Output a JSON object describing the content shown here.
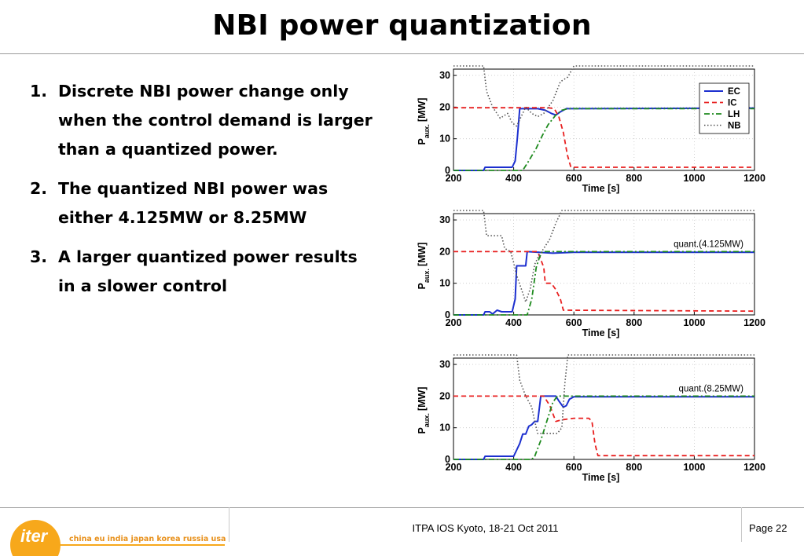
{
  "slide": {
    "title": "NBI power quantization",
    "bullets": [
      {
        "num": "1.",
        "text": "Discrete NBI power change only when the control demand is larger than a quantized power."
      },
      {
        "num": "2.",
        "text": "The quantized NBI power was either 4.125MW or 8.25MW"
      },
      {
        "num": "3.",
        "text": "A larger quantized power results in a slower control"
      }
    ]
  },
  "footer": {
    "logo_word": "iter",
    "logo_tagline": "china eu india japan korea russia usa",
    "event": "ITPA IOS Kyoto, 18-21 Oct 2011",
    "page": "Page 22"
  },
  "colors": {
    "EC": "#1c2fcf",
    "IC": "#e82020",
    "LH": "#1e8a1e",
    "NB": "#555555",
    "logo_orange": "#f7a81b",
    "logo_text": "#e8901a"
  },
  "chart_data": [
    {
      "type": "line",
      "annotation": "",
      "xlabel": "Time [s]",
      "ylabel_main": "P",
      "ylabel_sub": "aux.",
      "ylabel_unit": "[MW]",
      "xlim": [
        200,
        1200
      ],
      "ylim": [
        0,
        32
      ],
      "xticks": [
        200,
        400,
        600,
        800,
        1000,
        1200
      ],
      "yticks": [
        0,
        10,
        20,
        30
      ],
      "grid": true,
      "legend_position": "top-right",
      "series": [
        {
          "name": "EC",
          "style": "solid",
          "points": [
            [
              200,
              0
            ],
            [
              300,
              0
            ],
            [
              305,
              1
            ],
            [
              320,
              1
            ],
            [
              395,
              1
            ],
            [
              405,
              3
            ],
            [
              412,
              10
            ],
            [
              420,
              19.5
            ],
            [
              480,
              19.5
            ],
            [
              505,
              19
            ],
            [
              525,
              18
            ],
            [
              540,
              17.5
            ],
            [
              555,
              18.5
            ],
            [
              575,
              19.5
            ],
            [
              1200,
              19.7
            ]
          ]
        },
        {
          "name": "IC",
          "style": "dash",
          "points": [
            [
              200,
              19.8
            ],
            [
              515,
              19.8
            ],
            [
              535,
              19.5
            ],
            [
              550,
              17
            ],
            [
              565,
              12
            ],
            [
              578,
              5
            ],
            [
              590,
              1
            ],
            [
              1200,
              1
            ]
          ]
        },
        {
          "name": "LH",
          "style": "dashdot",
          "points": [
            [
              200,
              0
            ],
            [
              430,
              0
            ],
            [
              450,
              3
            ],
            [
              475,
              7
            ],
            [
              495,
              11
            ],
            [
              515,
              14.5
            ],
            [
              540,
              17.5
            ],
            [
              560,
              19
            ],
            [
              580,
              19.5
            ],
            [
              1200,
              19.5
            ]
          ]
        },
        {
          "name": "NB",
          "style": "dot",
          "points": [
            [
              200,
              33
            ],
            [
              300,
              33
            ],
            [
              310,
              25
            ],
            [
              330,
              20
            ],
            [
              355,
              16.5
            ],
            [
              380,
              18
            ],
            [
              395,
              15
            ],
            [
              410,
              14
            ],
            [
              440,
              20
            ],
            [
              460,
              18
            ],
            [
              480,
              17
            ],
            [
              500,
              18
            ],
            [
              530,
              22
            ],
            [
              555,
              28
            ],
            [
              580,
              29.5
            ],
            [
              600,
              33
            ],
            [
              1200,
              33
            ]
          ]
        }
      ]
    },
    {
      "type": "line",
      "annotation": "quant.(4.125MW)",
      "xlabel": "Time [s]",
      "ylabel_main": "P",
      "ylabel_sub": "aux.",
      "ylabel_unit": "[MW]",
      "xlim": [
        200,
        1200
      ],
      "ylim": [
        0,
        32
      ],
      "xticks": [
        200,
        400,
        600,
        800,
        1000,
        1200
      ],
      "yticks": [
        0,
        10,
        20,
        30
      ],
      "grid": true,
      "legend_position": "none",
      "series": [
        {
          "name": "EC",
          "style": "solid",
          "points": [
            [
              200,
              0
            ],
            [
              300,
              0
            ],
            [
              305,
              1
            ],
            [
              320,
              1
            ],
            [
              330,
              0.3
            ],
            [
              345,
              1.5
            ],
            [
              360,
              1
            ],
            [
              395,
              1
            ],
            [
              405,
              5
            ],
            [
              410,
              15.5
            ],
            [
              440,
              15.5
            ],
            [
              445,
              20
            ],
            [
              530,
              19.5
            ],
            [
              600,
              19.8
            ],
            [
              1200,
              19.8
            ]
          ]
        },
        {
          "name": "IC",
          "style": "dash",
          "points": [
            [
              200,
              20
            ],
            [
              480,
              20
            ],
            [
              500,
              15
            ],
            [
              505,
              10
            ],
            [
              525,
              10
            ],
            [
              540,
              8
            ],
            [
              555,
              5
            ],
            [
              565,
              1.5
            ],
            [
              1200,
              1.2
            ]
          ]
        },
        {
          "name": "LH",
          "style": "dashdot",
          "points": [
            [
              200,
              0
            ],
            [
              445,
              0
            ],
            [
              460,
              5
            ],
            [
              475,
              15
            ],
            [
              485,
              18
            ],
            [
              495,
              20
            ],
            [
              1200,
              20
            ]
          ]
        },
        {
          "name": "NB",
          "style": "dot",
          "points": [
            [
              200,
              33
            ],
            [
              300,
              33
            ],
            [
              310,
              25
            ],
            [
              360,
              25
            ],
            [
              370,
              21
            ],
            [
              390,
              20
            ],
            [
              400,
              16.5
            ],
            [
              410,
              12.5
            ],
            [
              425,
              8.3
            ],
            [
              440,
              4.1
            ],
            [
              455,
              8.3
            ],
            [
              470,
              16
            ],
            [
              480,
              18
            ],
            [
              500,
              21
            ],
            [
              520,
              24
            ],
            [
              540,
              29
            ],
            [
              560,
              33
            ],
            [
              1200,
              33
            ]
          ]
        }
      ]
    },
    {
      "type": "line",
      "annotation": "quant.(8.25MW)",
      "xlabel": "Time [s]",
      "ylabel_main": "P",
      "ylabel_sub": "aux.",
      "ylabel_unit": "[MW]",
      "xlim": [
        200,
        1200
      ],
      "ylim": [
        0,
        32
      ],
      "xticks": [
        200,
        400,
        600,
        800,
        1000,
        1200
      ],
      "yticks": [
        0,
        10,
        20,
        30
      ],
      "grid": true,
      "legend_position": "none",
      "series": [
        {
          "name": "EC",
          "style": "solid",
          "points": [
            [
              200,
              0
            ],
            [
              300,
              0
            ],
            [
              305,
              1
            ],
            [
              400,
              1
            ],
            [
              420,
              5
            ],
            [
              430,
              8
            ],
            [
              440,
              8
            ],
            [
              450,
              10.5
            ],
            [
              460,
              11
            ],
            [
              470,
              12
            ],
            [
              480,
              12
            ],
            [
              490,
              20
            ],
            [
              540,
              20
            ],
            [
              550,
              18.5
            ],
            [
              565,
              16.5
            ],
            [
              575,
              17
            ],
            [
              585,
              19
            ],
            [
              600,
              19.8
            ],
            [
              1200,
              19.8
            ]
          ]
        },
        {
          "name": "IC",
          "style": "dash",
          "points": [
            [
              200,
              20
            ],
            [
              500,
              20
            ],
            [
              520,
              17
            ],
            [
              540,
              12
            ],
            [
              560,
              12.5
            ],
            [
              600,
              13
            ],
            [
              650,
              13
            ],
            [
              660,
              12
            ],
            [
              670,
              5
            ],
            [
              680,
              1.2
            ],
            [
              1200,
              1.2
            ]
          ]
        },
        {
          "name": "LH",
          "style": "dashdot",
          "points": [
            [
              200,
              0
            ],
            [
              460,
              0
            ],
            [
              470,
              1
            ],
            [
              490,
              6
            ],
            [
              510,
              12
            ],
            [
              530,
              18
            ],
            [
              545,
              20
            ],
            [
              1200,
              20
            ]
          ]
        },
        {
          "name": "NB",
          "style": "dot",
          "points": [
            [
              200,
              33
            ],
            [
              300,
              33
            ],
            [
              340,
              33
            ],
            [
              410,
              33
            ],
            [
              420,
              25
            ],
            [
              440,
              20
            ],
            [
              460,
              16.5
            ],
            [
              470,
              12
            ],
            [
              480,
              8.2
            ],
            [
              500,
              8.2
            ],
            [
              520,
              8.2
            ],
            [
              530,
              8.2
            ],
            [
              545,
              8.2
            ],
            [
              560,
              10
            ],
            [
              570,
              24
            ],
            [
              580,
              33
            ],
            [
              1200,
              33
            ]
          ]
        }
      ]
    }
  ]
}
